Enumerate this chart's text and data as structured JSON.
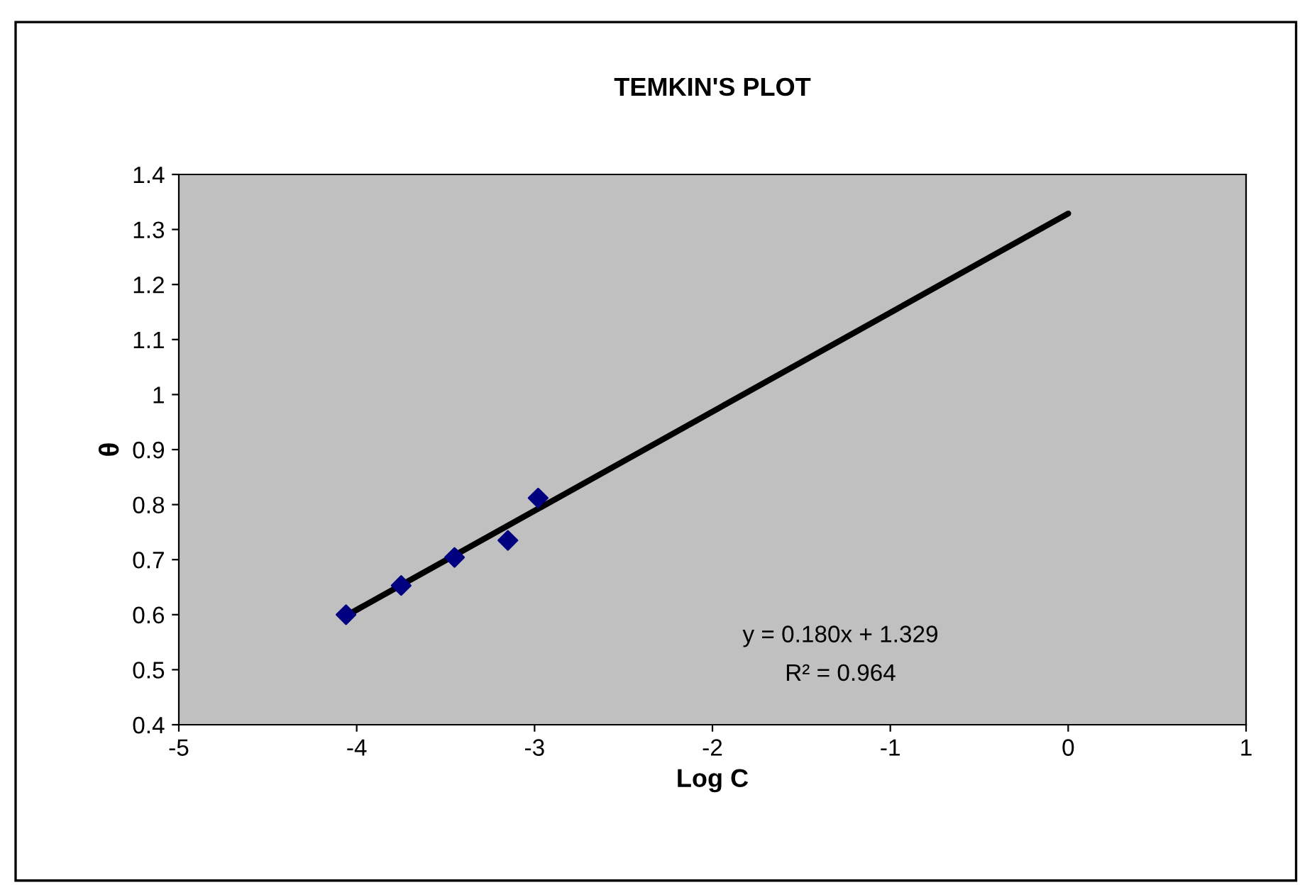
{
  "chart_data": {
    "type": "scatter",
    "title": "TEMKIN'S PLOT",
    "xlabel": "Log C",
    "ylabel": "θ",
    "x": [
      -4.06,
      -3.75,
      -3.45,
      -3.15,
      -2.98
    ],
    "series": [
      {
        "color": "#000080",
        "marker": "diamond",
        "values": [
          0.6,
          0.653,
          0.704,
          0.735,
          0.812
        ]
      },
      {
        "type": "line",
        "color": "#000000",
        "marker": "none",
        "x": [
          -4.06,
          0
        ],
        "values": [
          0.598,
          1.329
        ]
      }
    ],
    "annotations": [
      "y = 0.180x + 1.329",
      "R² = 0.964"
    ],
    "xlim": [
      -5,
      1
    ],
    "xticks": [
      -5,
      -4,
      -3,
      -2,
      -1,
      0,
      1
    ],
    "ylim": [
      0.4,
      1.4
    ],
    "yticks": [
      0.4,
      0.5,
      0.6,
      0.7,
      0.8,
      0.9,
      1,
      1.1,
      1.2,
      1.3,
      1.4
    ],
    "grid": false,
    "legend": false
  }
}
